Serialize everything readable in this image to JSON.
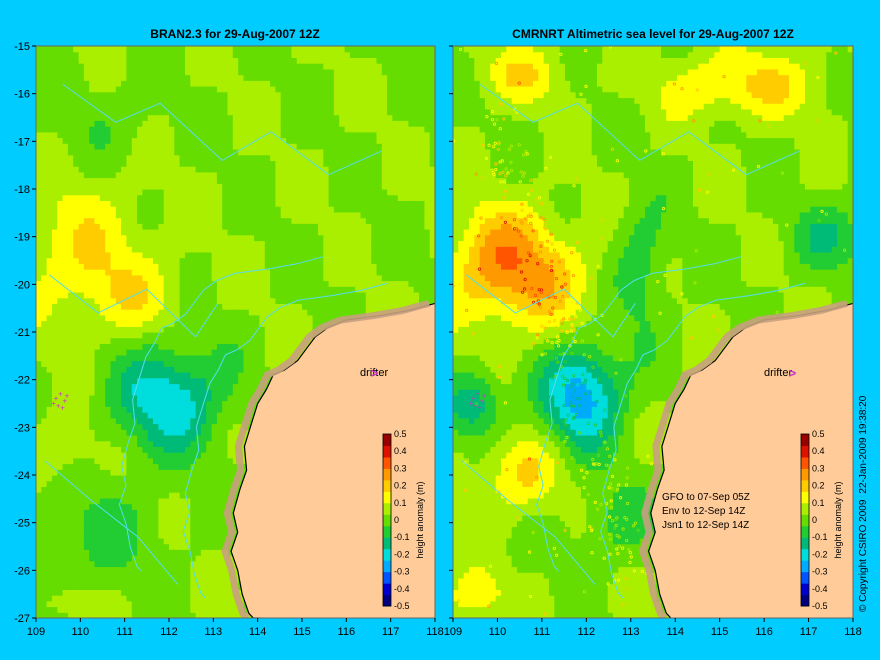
{
  "figure": {
    "background": "#00ccff",
    "land_color": "#ffcc99",
    "reef_color": "#c8a080",
    "contour_color": "#55ddee",
    "copyright": "© Copyright CSIRO 2009",
    "timestamp": "22-Jan-2009 19:38:20"
  },
  "panels": [
    {
      "id": "bran",
      "title": "BRAN2.3 for 29-Aug-2007 12Z",
      "label_drifter": "drifter",
      "has_observations": false,
      "notes": []
    },
    {
      "id": "cmrnrt",
      "title": "CMRNRT Altimetric sea level  for 29-Aug-2007 12Z",
      "label_drifter": "drifter",
      "has_observations": true,
      "notes": [
        "GFO to 07-Sep 05Z",
        "Env to 12-Sep 14Z",
        "Jsn1 to 12-Sep 14Z"
      ]
    }
  ],
  "axes": {
    "x_ticks": [
      "109",
      "110",
      "111",
      "112",
      "113",
      "114",
      "115",
      "116",
      "117",
      "118"
    ],
    "y_ticks": [
      "-15",
      "-16",
      "-17",
      "-18",
      "-19",
      "-20",
      "-21",
      "-22",
      "-23",
      "-24",
      "-25",
      "-26",
      "-27"
    ],
    "xlim": [
      109,
      118
    ],
    "ylim": [
      -27,
      -15
    ]
  },
  "colorbar": {
    "label": "height anomaly (m)",
    "ticks": [
      "0.5",
      "0.4",
      "0.3",
      "0.2",
      "0.1",
      "0",
      "-0.1",
      "-0.2",
      "-0.3",
      "-0.4",
      "-0.5"
    ],
    "colors": [
      "#00007f",
      "#0000cc",
      "#0055ff",
      "#00aaff",
      "#00dddd",
      "#00bb77",
      "#22cc33",
      "#66dd00",
      "#aaee00",
      "#ffff00",
      "#ffcc00",
      "#ff9900",
      "#ff5500",
      "#dd1100",
      "#990000"
    ]
  },
  "map_data": {
    "coastline": [
      [
        118,
        -20.4
      ],
      [
        117.4,
        -20.55
      ],
      [
        116.8,
        -20.65
      ],
      [
        116.4,
        -20.7
      ],
      [
        116,
        -20.75
      ],
      [
        115.6,
        -20.9
      ],
      [
        115.3,
        -21.1
      ],
      [
        115.1,
        -21.35
      ],
      [
        114.9,
        -21.6
      ],
      [
        114.6,
        -21.8
      ],
      [
        114.35,
        -21.9
      ],
      [
        114.2,
        -22.2
      ],
      [
        114.0,
        -22.5
      ],
      [
        113.85,
        -22.95
      ],
      [
        113.7,
        -23.4
      ],
      [
        113.75,
        -23.9
      ],
      [
        113.6,
        -24.3
      ],
      [
        113.45,
        -24.8
      ],
      [
        113.55,
        -25.2
      ],
      [
        113.4,
        -25.6
      ],
      [
        113.55,
        -26.0
      ],
      [
        113.65,
        -26.5
      ],
      [
        113.8,
        -26.9
      ],
      [
        113.9,
        -27
      ]
    ],
    "field": {
      "base": 0.03,
      "features": [
        {
          "panel": "bran",
          "lon": 110.0,
          "lat": -19.3,
          "amp": 0.12,
          "rx": 1.6,
          "ry": 1.4
        },
        {
          "panel": "bran",
          "lon": 111.2,
          "lat": -20.3,
          "amp": 0.08,
          "rx": 1.2,
          "ry": 0.8
        },
        {
          "panel": "bran",
          "lon": 112.0,
          "lat": -22.4,
          "amp": -0.25,
          "rx": 1.2,
          "ry": 1.1
        },
        {
          "panel": "bran",
          "lon": 109.6,
          "lat": -23.5,
          "amp": 0.08,
          "rx": 0.8,
          "ry": 0.7
        },
        {
          "panel": "bran",
          "lon": 110.3,
          "lat": -25.3,
          "amp": -0.08,
          "rx": 1.5,
          "ry": 1.2
        },
        {
          "panel": "bran",
          "lon": 110.6,
          "lat": -16.5,
          "amp": -0.05,
          "rx": 1.2,
          "ry": 0.8
        },
        {
          "panel": "bran",
          "lon": 109.8,
          "lat": -26.7,
          "amp": 0.1,
          "rx": 0.6,
          "ry": 0.3
        },
        {
          "panel": "cmrnrt",
          "lon": 110.0,
          "lat": -19.5,
          "amp": 0.2,
          "rx": 1.2,
          "ry": 1.1
        },
        {
          "panel": "cmrnrt",
          "lon": 111.0,
          "lat": -20.0,
          "amp": 0.12,
          "rx": 1.4,
          "ry": 1.2
        },
        {
          "panel": "cmrnrt",
          "lon": 113.2,
          "lat": -19.6,
          "amp": -0.12,
          "rx": 0.6,
          "ry": 1.3
        },
        {
          "panel": "cmrnrt",
          "lon": 111.9,
          "lat": -22.3,
          "amp": -0.3,
          "rx": 0.9,
          "ry": 1.1
        },
        {
          "panel": "cmrnrt",
          "lon": 109.5,
          "lat": -22.5,
          "amp": -0.18,
          "rx": 0.6,
          "ry": 0.7
        },
        {
          "panel": "cmrnrt",
          "lon": 110.5,
          "lat": -24.0,
          "amp": 0.14,
          "rx": 1.0,
          "ry": 0.8
        },
        {
          "panel": "cmrnrt",
          "lon": 115.5,
          "lat": -15.8,
          "amp": 0.15,
          "rx": 1.8,
          "ry": 0.7
        },
        {
          "panel": "cmrnrt",
          "lon": 110.5,
          "lat": -15.6,
          "amp": 0.12,
          "rx": 1.0,
          "ry": 0.6
        },
        {
          "panel": "cmrnrt",
          "lon": 117.5,
          "lat": -19.0,
          "amp": -0.12,
          "rx": 0.9,
          "ry": 0.7
        },
        {
          "panel": "cmrnrt",
          "lon": 112.7,
          "lat": -25.0,
          "amp": -0.08,
          "rx": 1.0,
          "ry": 0.9
        },
        {
          "panel": "cmrnrt",
          "lon": 109.5,
          "lat": -26.5,
          "amp": 0.15,
          "rx": 0.6,
          "ry": 0.5
        }
      ]
    },
    "drifter": {
      "lon": 116.55,
      "lat": -21.95
    },
    "drifter_color": "#cc33cc",
    "marker_cluster": [
      [
        109.45,
        -22.45
      ],
      [
        109.55,
        -22.35
      ],
      [
        109.65,
        -22.5
      ],
      [
        109.5,
        -22.6
      ],
      [
        109.6,
        -22.65
      ],
      [
        109.4,
        -22.55
      ],
      [
        109.7,
        -22.4
      ]
    ]
  }
}
